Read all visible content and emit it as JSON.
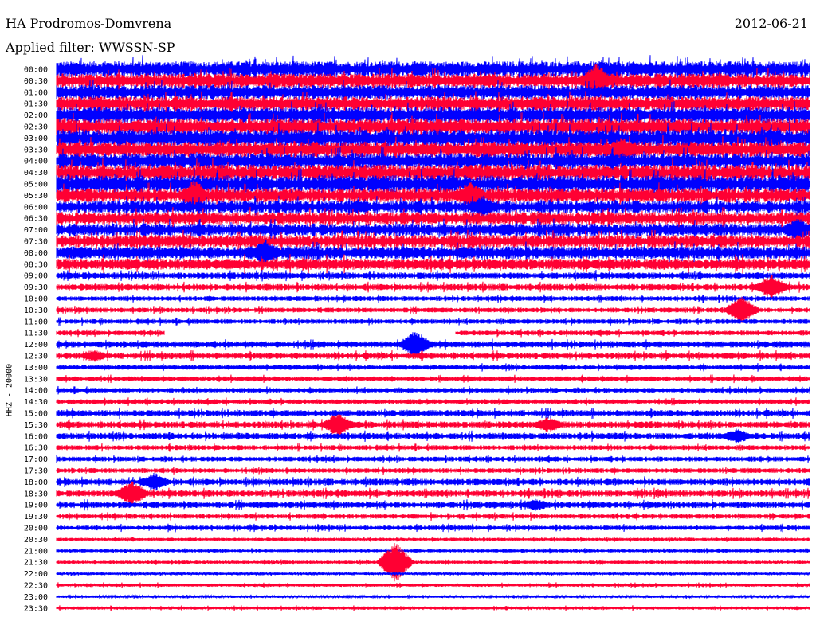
{
  "header": {
    "station": "HA Prodromos-Domvrena",
    "date": "2012-06-21",
    "filter": "Applied filter: WWSSN-SP"
  },
  "chart_data": {
    "type": "line",
    "title": "HA Prodromos-Domvrena",
    "channel_label": "HHZ - 20000",
    "colors": [
      "#0000ff",
      "#ff0033"
    ],
    "rows": [
      "00:00",
      "00:30",
      "01:00",
      "01:30",
      "02:00",
      "02:30",
      "03:00",
      "03:30",
      "04:00",
      "04:30",
      "05:00",
      "05:30",
      "06:00",
      "06:30",
      "07:00",
      "07:30",
      "08:00",
      "08:30",
      "09:00",
      "09:30",
      "10:00",
      "10:30",
      "11:00",
      "11:30",
      "12:00",
      "12:30",
      "13:00",
      "13:30",
      "14:00",
      "14:30",
      "15:00",
      "15:30",
      "16:00",
      "16:30",
      "17:00",
      "17:30",
      "18:00",
      "18:30",
      "19:00",
      "19:30",
      "20:00",
      "20:30",
      "21:00",
      "21:30",
      "22:00",
      "22:30",
      "23:00",
      "23:30"
    ],
    "noise_level": [
      10,
      9,
      9,
      9,
      10,
      10,
      11,
      10,
      10,
      10,
      11,
      9,
      8,
      8,
      8,
      8,
      8,
      7,
      4,
      4,
      3,
      3,
      3,
      3,
      4,
      4,
      3,
      3,
      3,
      3,
      4,
      4,
      4,
      3,
      3,
      3,
      4,
      4,
      4,
      3,
      3,
      2,
      2,
      2,
      1.5,
      2,
      1.5,
      2
    ],
    "events": [
      {
        "row": "00:30",
        "minute": 21.5,
        "amp": 22
      },
      {
        "row": "03:30",
        "minute": 22.5,
        "amp": 16
      },
      {
        "row": "05:30",
        "minute": 5.5,
        "amp": 20
      },
      {
        "row": "05:30",
        "minute": 16.5,
        "amp": 18
      },
      {
        "row": "06:00",
        "minute": 17,
        "amp": 15
      },
      {
        "row": "07:00",
        "minute": 29.5,
        "amp": 16
      },
      {
        "row": "08:00",
        "minute": 8.3,
        "amp": 18
      },
      {
        "row": "09:30",
        "minute": 28.5,
        "amp": 16
      },
      {
        "row": "10:30",
        "minute": 27.3,
        "amp": 18
      },
      {
        "row": "12:00",
        "minute": 14.3,
        "amp": 18
      },
      {
        "row": "12:30",
        "minute": 1.5,
        "amp": 8
      },
      {
        "row": "15:30",
        "minute": 11.2,
        "amp": 16
      },
      {
        "row": "15:30",
        "minute": 19.6,
        "amp": 10
      },
      {
        "row": "16:00",
        "minute": 27.1,
        "amp": 10
      },
      {
        "row": "18:00",
        "minute": 3.9,
        "amp": 12
      },
      {
        "row": "18:30",
        "minute": 3,
        "amp": 16
      },
      {
        "row": "19:00",
        "minute": 19.1,
        "amp": 8
      },
      {
        "row": "21:30",
        "minute": 13.5,
        "amp": 26
      }
    ],
    "gaps": [
      {
        "row": "11:30",
        "from": 4.3,
        "to": 15.9
      }
    ]
  }
}
